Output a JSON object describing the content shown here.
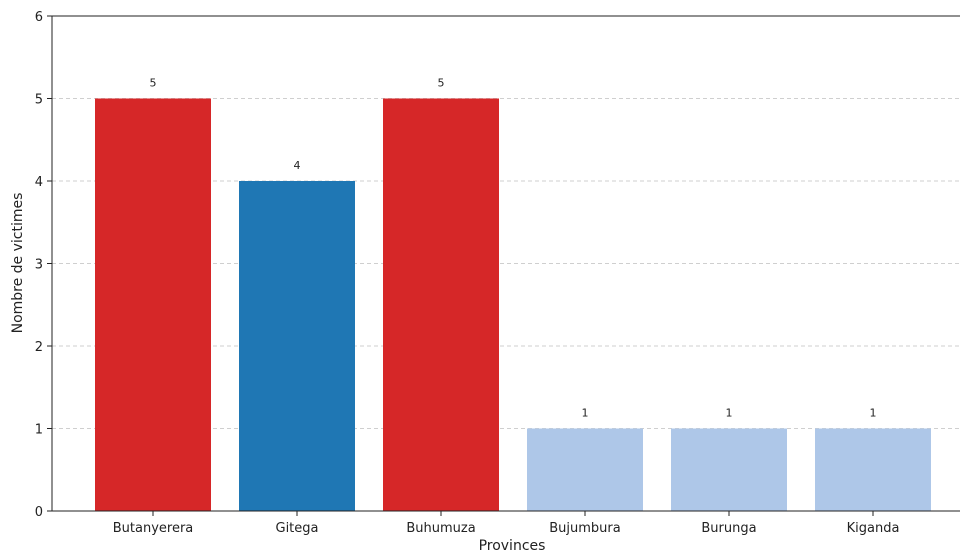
{
  "chart_data": {
    "type": "bar",
    "categories": [
      "Butanyerera",
      "Gitega",
      "Buhumuza",
      "Bujumbura",
      "Burunga",
      "Kiganda"
    ],
    "values": [
      5,
      4,
      5,
      1,
      1,
      1
    ],
    "bar_colors": [
      "#d62728",
      "#1f77b4",
      "#d62728",
      "#aec7e8",
      "#aec7e8",
      "#aec7e8"
    ],
    "data_labels": [
      "5",
      "4",
      "5",
      "1",
      "1",
      "1"
    ],
    "xlabel": "Provinces",
    "ylabel": "Nombre de victimes",
    "ylim": [
      0,
      6
    ],
    "yticks": [
      0,
      1,
      2,
      3,
      4,
      5,
      6
    ],
    "grid": "y-dashed"
  }
}
